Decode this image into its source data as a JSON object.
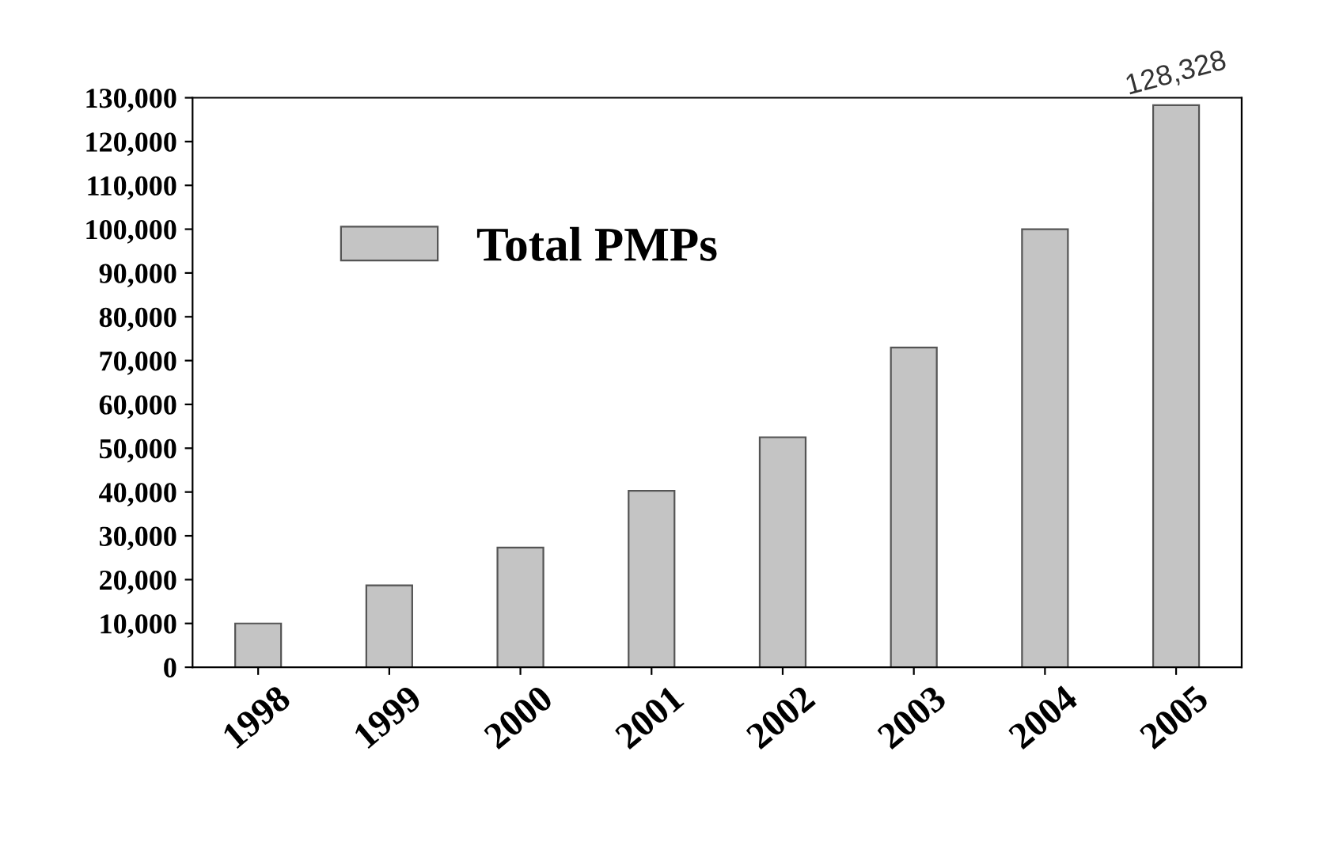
{
  "chart_data": {
    "type": "bar",
    "categories": [
      "1998",
      "1999",
      "2000",
      "2001",
      "2002",
      "2003",
      "2004",
      "2005"
    ],
    "series": [
      {
        "name": "Total PMPs",
        "color": "#c4c4c4",
        "values": [
          10000,
          18700,
          27300,
          40300,
          52500,
          73000,
          100000,
          128328
        ],
        "value_labels": [
          null,
          null,
          null,
          null,
          null,
          null,
          null,
          "128,328"
        ]
      }
    ],
    "ylim": [
      0,
      130000
    ],
    "yticks": [
      {
        "value": 0,
        "label": "0"
      },
      {
        "value": 10000,
        "label": "10,000"
      },
      {
        "value": 20000,
        "label": "20,000"
      },
      {
        "value": 30000,
        "label": "30,000"
      },
      {
        "value": 40000,
        "label": "40,000"
      },
      {
        "value": 50000,
        "label": "50,000"
      },
      {
        "value": 60000,
        "label": "60,000"
      },
      {
        "value": 70000,
        "label": "70,000"
      },
      {
        "value": 80000,
        "label": "80,000"
      },
      {
        "value": 90000,
        "label": "90,000"
      },
      {
        "value": 100000,
        "label": "100,000"
      },
      {
        "value": 110000,
        "label": "110,000"
      },
      {
        "value": 120000,
        "label": "120,000"
      },
      {
        "value": 130000,
        "label": "130,000"
      }
    ],
    "legend": "top left",
    "grid": false
  }
}
